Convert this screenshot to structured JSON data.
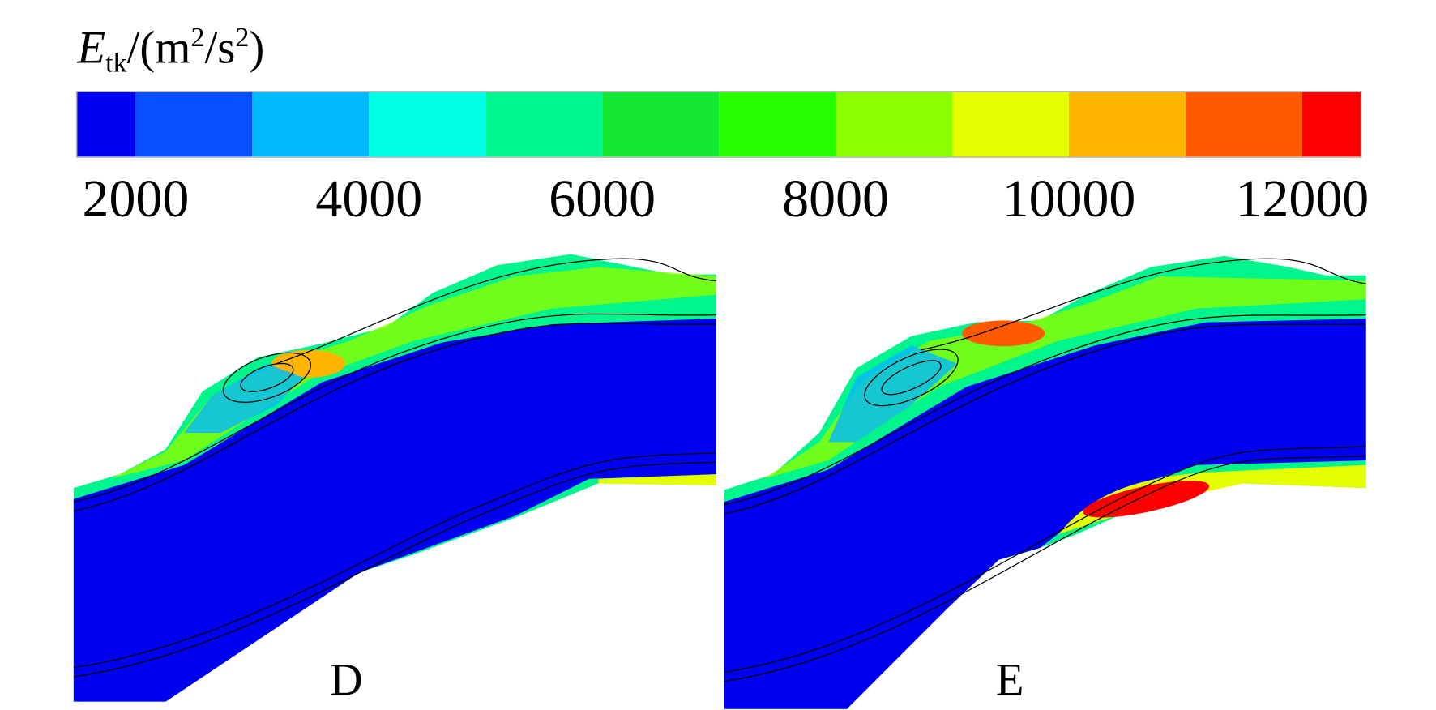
{
  "chart_data": {
    "type": "colorbar",
    "title_parts": [
      "E",
      "tk",
      "/(m",
      "2",
      "/s",
      "2",
      ")"
    ],
    "xlim": [
      1500,
      12500
    ],
    "bins": [
      1500,
      2000,
      3000,
      4000,
      5000,
      6000,
      7000,
      8000,
      9000,
      10000,
      11000,
      12000,
      12500
    ],
    "colors": [
      "#0000f0",
      "#0a50ff",
      "#00b9ff",
      "#00ffe6",
      "#00f58c",
      "#14e832",
      "#28ff00",
      "#8cff00",
      "#e6ff00",
      "#ffb400",
      "#ff5a00",
      "#ff0000"
    ],
    "xticks": [
      2000,
      4000,
      6000,
      8000,
      10000,
      12000
    ]
  },
  "panels": [
    {
      "label": "D"
    },
    {
      "label": "E"
    }
  ]
}
